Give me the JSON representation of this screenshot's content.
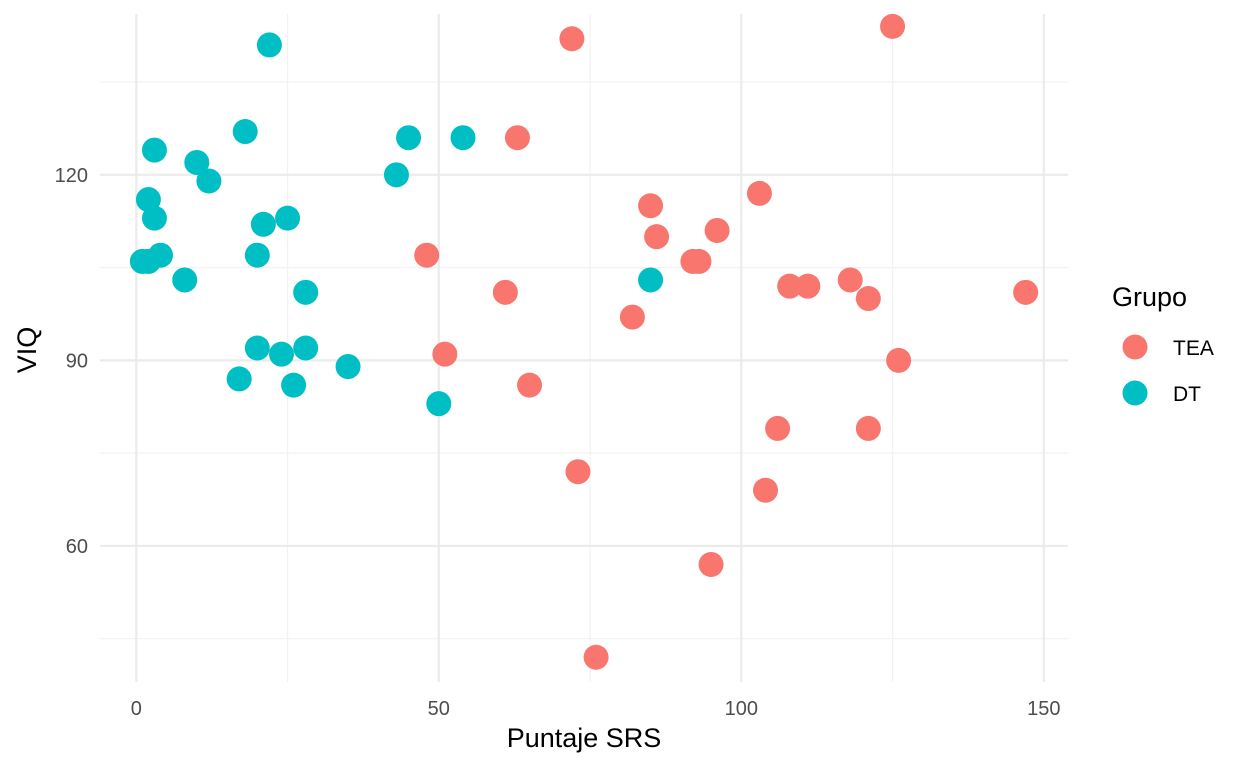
{
  "chart_data": {
    "type": "scatter",
    "title": "",
    "xlabel": "Puntaje SRS",
    "ylabel": "VIQ",
    "xlim": [
      -6,
      154
    ],
    "ylim": [
      38,
      146
    ],
    "x_ticks": [
      0,
      50,
      100,
      150
    ],
    "x_tick_labels": [
      "0",
      "50",
      "100",
      "150"
    ],
    "y_ticks": [
      60,
      90,
      120
    ],
    "y_tick_labels": [
      "60",
      "90",
      "120"
    ],
    "grid": true,
    "legend": {
      "title": "Grupo",
      "placement": "right",
      "entries": [
        "TEA",
        "DT"
      ]
    },
    "series": [
      {
        "name": "TEA",
        "color": "#F8766D",
        "points": [
          [
            72,
            142
          ],
          [
            125,
            144
          ],
          [
            63,
            126
          ],
          [
            85,
            115
          ],
          [
            86,
            110
          ],
          [
            96,
            111
          ],
          [
            103,
            117
          ],
          [
            48,
            107
          ],
          [
            92,
            106
          ],
          [
            93,
            106
          ],
          [
            61,
            101
          ],
          [
            82,
            97
          ],
          [
            108,
            102
          ],
          [
            111,
            102
          ],
          [
            118,
            103
          ],
          [
            121,
            100
          ],
          [
            147,
            101
          ],
          [
            51,
            91
          ],
          [
            126,
            90
          ],
          [
            65,
            86
          ],
          [
            106,
            79
          ],
          [
            121,
            79
          ],
          [
            73,
            72
          ],
          [
            104,
            69
          ],
          [
            95,
            57
          ],
          [
            76,
            42
          ]
        ]
      },
      {
        "name": "DT",
        "color": "#00BFC4",
        "points": [
          [
            22,
            141
          ],
          [
            18,
            127
          ],
          [
            3,
            124
          ],
          [
            10,
            122
          ],
          [
            12,
            119
          ],
          [
            2,
            116
          ],
          [
            3,
            113
          ],
          [
            21,
            112
          ],
          [
            25,
            113
          ],
          [
            1,
            106
          ],
          [
            2,
            106
          ],
          [
            4,
            107
          ],
          [
            20,
            107
          ],
          [
            8,
            103
          ],
          [
            28,
            101
          ],
          [
            43,
            120
          ],
          [
            45,
            126
          ],
          [
            54,
            126
          ],
          [
            20,
            92
          ],
          [
            24,
            91
          ],
          [
            28,
            92
          ],
          [
            17,
            87
          ],
          [
            26,
            86
          ],
          [
            35,
            89
          ],
          [
            50,
            83
          ],
          [
            85,
            103
          ]
        ]
      }
    ]
  }
}
